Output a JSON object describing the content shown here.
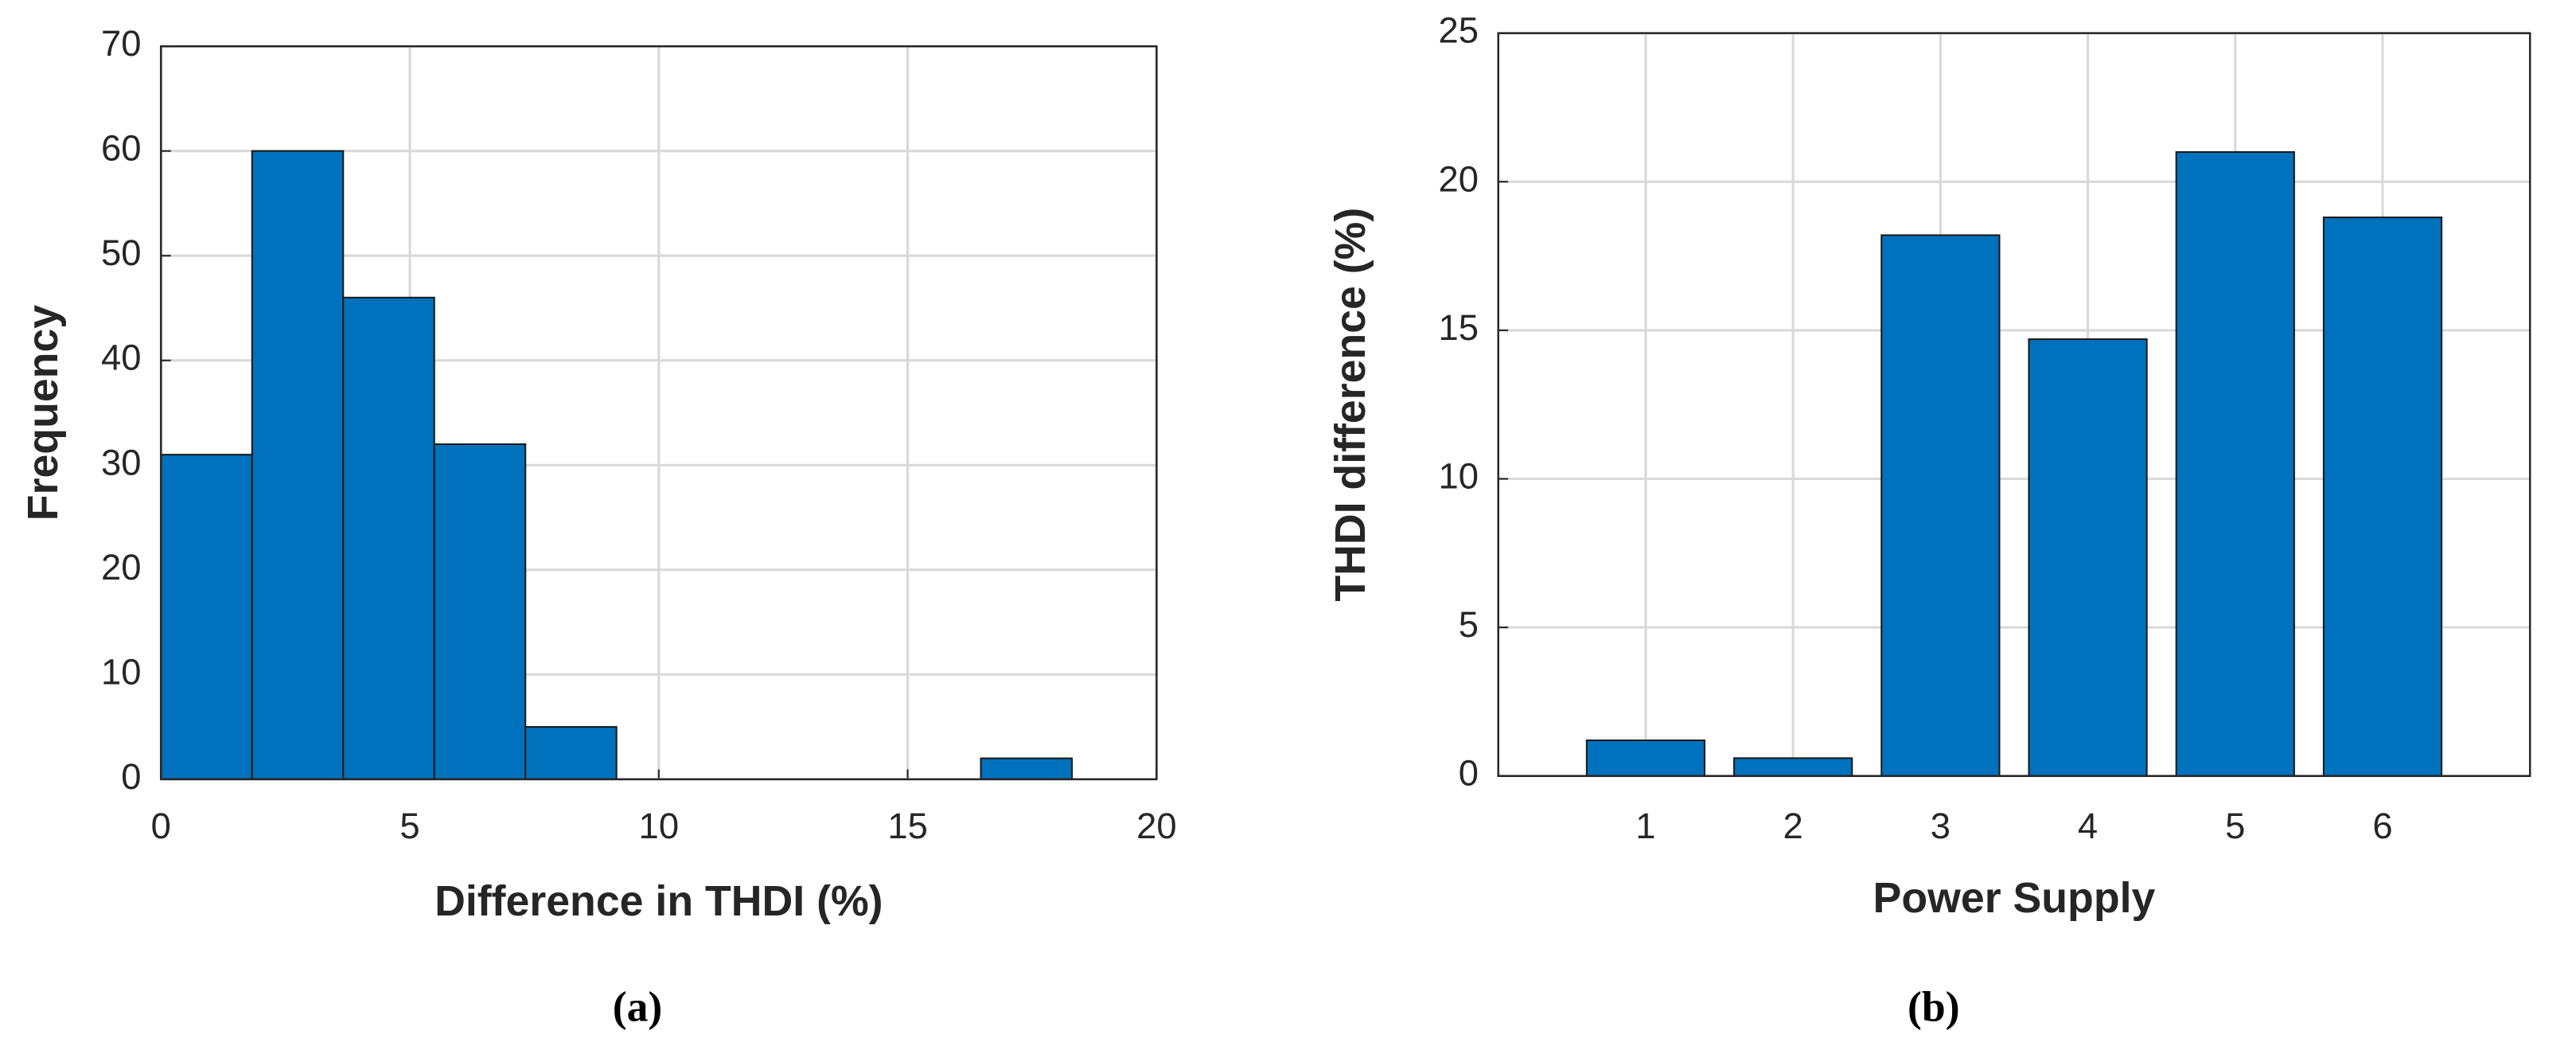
{
  "chart_data": [
    {
      "type": "histogram",
      "label": "(a)",
      "x_label": "Difference in THDI (%)",
      "y_label": "Frequency",
      "bins": [
        0,
        1.83,
        3.66,
        5.49,
        7.32,
        9.15,
        10.98,
        12.81,
        14.64,
        16.47,
        18.3
      ],
      "values": [
        31,
        60,
        46,
        32,
        5,
        0,
        0,
        0,
        0,
        2
      ],
      "color": "#0072bd",
      "xlim": [
        0,
        20
      ],
      "xticks": [
        0,
        5,
        10,
        15,
        20
      ],
      "ylim": [
        0,
        70
      ],
      "yticks": [
        0,
        10,
        20,
        30,
        40,
        50,
        60,
        70
      ],
      "grid": true
    },
    {
      "type": "bar",
      "label": "(b)",
      "x_label": "Power Supply",
      "y_label": "THDI difference (%)",
      "categories": [
        "1",
        "2",
        "3",
        "4",
        "5",
        "6"
      ],
      "values": [
        1.2,
        0.6,
        18.2,
        14.7,
        21,
        18.8
      ],
      "color": "#0072bd",
      "ylim": [
        0,
        25
      ],
      "yticks": [
        0,
        5,
        10,
        15,
        20,
        25
      ],
      "grid": true
    }
  ]
}
